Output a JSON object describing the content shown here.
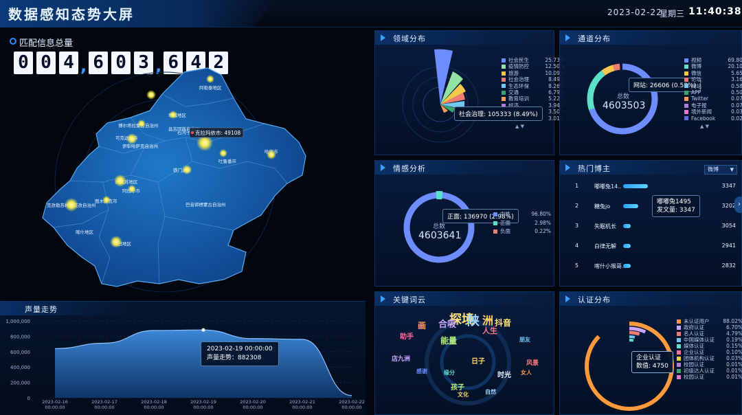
{
  "header": {
    "title": "数据感知态势大屏",
    "date": "2023-02-22",
    "weekday": "星期三",
    "time": "11:40:38"
  },
  "total": {
    "label": "匹配信息总量",
    "digits": [
      "0",
      "0",
      "4",
      ",",
      "6",
      "0",
      "3",
      ",",
      "6",
      "4",
      "2"
    ]
  },
  "map": {
    "tooltip": "克拉玛依市: 49108",
    "labels": [
      "阿勒泰地区",
      "博尔塔拉蒙古自治州",
      "塔城地区",
      "克拉玛依市",
      "伊犁哈萨克自治州",
      "昌吉回族自治州",
      "乌鲁木齐市",
      "石河子市",
      "吐鲁番市",
      "哈密市",
      "巴音郭楞蒙古自治州",
      "阿克苏地区",
      "阿拉尔市",
      "图木舒克市",
      "克孜勒苏柯尔克孜自治州",
      "喀什地区",
      "和田地区",
      "铁门关市",
      "五家渠市",
      "可克达拉市"
    ]
  },
  "panels": {
    "domain": {
      "title": "领域分布",
      "tooltip": "社会治理: 105333 (8.49%)",
      "legend": [
        {
          "name": "社会民生",
          "pct": "25.73%",
          "color": "#6d8cff"
        },
        {
          "name": "疫情防控",
          "pct": "12.50%",
          "color": "#91e3a4"
        },
        {
          "name": "旅游",
          "pct": "10.09%",
          "color": "#f5c84c"
        },
        {
          "name": "社会治理",
          "pct": "8.49%",
          "color": "#f07d74"
        },
        {
          "name": "生态环保",
          "pct": "8.26%",
          "color": "#72c8f2"
        },
        {
          "name": "交通",
          "pct": "6.79%",
          "color": "#3aa36f"
        },
        {
          "name": "教育培训",
          "pct": "5.22%",
          "color": "#ff9a5a"
        },
        {
          "name": "经济",
          "pct": "3.94%",
          "color": "#b57bd9"
        },
        {
          "name": "医疗",
          "pct": "3.50%",
          "color": "#e47ad0"
        },
        {
          "name": "文化",
          "pct": "3.01%",
          "color": "#5b6fd6"
        }
      ]
    },
    "channel": {
      "title": "通道分布",
      "center_label": "总数",
      "center_value": "4603503",
      "tooltip": "网站: 26606 (0.58%)",
      "legend": [
        {
          "name": "视频",
          "pct": "69.80%",
          "color": "#6d8cff"
        },
        {
          "name": "微博",
          "pct": "20.10%",
          "color": "#5ce0c8"
        },
        {
          "name": "微信",
          "pct": "5.65%",
          "color": "#f5c84c"
        },
        {
          "name": "论坛",
          "pct": "3.16%",
          "color": "#f07d74"
        },
        {
          "name": "网站",
          "pct": "0.58%",
          "color": "#72c8f2"
        },
        {
          "name": "APP",
          "pct": "0.50%",
          "color": "#3aa36f"
        },
        {
          "name": "Twitter",
          "pct": "0.07%",
          "color": "#ff9a5a"
        },
        {
          "name": "电子报",
          "pct": "0.07%",
          "color": "#b57bd9"
        },
        {
          "name": "境外新闻",
          "pct": "0.03%",
          "color": "#e47ad0"
        },
        {
          "name": "Facebook",
          "pct": "0.02%",
          "color": "#5b6fd6"
        }
      ]
    },
    "sentiment": {
      "title": "情感分析",
      "center_label": "总数",
      "center_value": "4603641",
      "tooltip": "正面: 136970 (2.98%)",
      "legend": [
        {
          "name": "中性",
          "pct": "96.80%",
          "color": "#6d8cff"
        },
        {
          "name": "正面",
          "pct": "2.98%",
          "color": "#5ce0c8"
        },
        {
          "name": "负面",
          "pct": "0.22%",
          "color": "#f07d74"
        }
      ]
    },
    "blogger": {
      "title": "热门博主",
      "select": "微博",
      "tooltip_name": "嘟嘟兔1495",
      "tooltip_value": "发文量: 3347",
      "rows": [
        {
          "rank": "1",
          "name": "嘟嘟兔14..",
          "value": "3347",
          "frac": 1.0
        },
        {
          "rank": "2",
          "name": "糖兔jo",
          "value": "3202",
          "frac": 0.6
        },
        {
          "rank": "3",
          "name": "失眠机长",
          "value": "3054",
          "frac": 0.3
        },
        {
          "rank": "4",
          "name": "白律无解",
          "value": "2941",
          "frac": 0.3
        },
        {
          "rank": "5",
          "name": "喀什小猴哥..",
          "value": "2832",
          "frac": 0.3
        }
      ]
    },
    "keywords": {
      "title": "关键词云",
      "words": [
        {
          "t": "探境",
          "c": "#ffe37a"
        },
        {
          "t": "陕",
          "c": "#9fd6ff"
        },
        {
          "t": "洲",
          "c": "#ffd36b"
        },
        {
          "t": "抖音",
          "c": "#ffe37a"
        },
        {
          "t": "合吸",
          "c": "#c9a6ff"
        },
        {
          "t": "人生",
          "c": "#ff7b7b"
        },
        {
          "t": "画",
          "c": "#ff9d5c"
        },
        {
          "t": "能量",
          "c": "#b6f07a"
        },
        {
          "t": "助手",
          "c": "#ff6f9a"
        },
        {
          "t": "日子",
          "c": "#ffd36b"
        },
        {
          "t": "时光",
          "c": "#e8f1ff"
        },
        {
          "t": "孩子",
          "c": "#b6f07a"
        },
        {
          "t": "店九洲",
          "c": "#c9a6ff"
        },
        {
          "t": "风景",
          "c": "#ff7b7b"
        },
        {
          "t": "朋友",
          "c": "#72c8f2"
        },
        {
          "t": "文化",
          "c": "#ffd36b"
        },
        {
          "t": "感谢",
          "c": "#6d8cff"
        },
        {
          "t": "女人",
          "c": "#ff9a5a"
        },
        {
          "t": "缘分",
          "c": "#5ce0c8"
        },
        {
          "t": "自然",
          "c": "#9fd6ff"
        }
      ]
    },
    "cert": {
      "title": "认证分布",
      "tooltip_name": "企业认证",
      "tooltip_value": "数值: 4750",
      "legend": [
        {
          "name": "未认证用户",
          "pct": "88.02%",
          "color": "#ff9a3c"
        },
        {
          "name": "政府认证",
          "pct": "6.70%",
          "color": "#c9a6ff"
        },
        {
          "name": "名人认证",
          "pct": "4.79%",
          "color": "#f07d74"
        },
        {
          "name": "中国媒体认证",
          "pct": "0.19%",
          "color": "#72c8f2"
        },
        {
          "name": "媒体认证",
          "pct": "0.15%",
          "color": "#5ce0c8"
        },
        {
          "name": "企业认证",
          "pct": "0.10%",
          "color": "#ff6f9a"
        },
        {
          "name": "团体机构认证",
          "pct": "0.03%",
          "color": "#f5c84c"
        },
        {
          "name": "校园认证",
          "pct": "0.01%",
          "color": "#b57bd9"
        },
        {
          "name": "初级达人认证",
          "pct": "0.01%",
          "color": "#3aa36f"
        },
        {
          "name": "校园认证",
          "pct": "0.01%",
          "color": "#e47ad0"
        }
      ]
    }
  },
  "trend": {
    "title": "声量走势",
    "tooltip_date": "2023-02-19 00:00:00",
    "tooltip_label": "声量走势：",
    "tooltip_value": "882308"
  },
  "chart_data": {
    "type": "area",
    "title": "声量走势",
    "x": [
      "2023-02-16 00:00:00",
      "2023-02-17 00:00:00",
      "2023-02-18 00:00:00",
      "2023-02-19 00:00:00",
      "2023-02-20 00:00:00",
      "2023-02-21 00:00:00",
      "2023-02-22 00:00:00"
    ],
    "values": [
      640000,
      710000,
      875000,
      882308,
      770000,
      760000,
      30000
    ],
    "ylim": [
      0,
      1000000
    ],
    "yticks": [
      "0",
      "200,000",
      "400,000",
      "600,000",
      "800,000",
      "1,000,000"
    ],
    "xticks": [
      [
        "2023-02-16",
        "00:00:00"
      ],
      [
        "2023-02-17",
        "00:00:00"
      ],
      [
        "2023-02-18",
        "00:00:00"
      ],
      [
        "2023-02-19",
        "00:00:00"
      ],
      [
        "2023-02-20",
        "00:00:00"
      ],
      [
        "2023-02-21",
        "00:00:00"
      ],
      [
        "2023-02-22",
        "00:00:00"
      ]
    ],
    "grid": true
  }
}
